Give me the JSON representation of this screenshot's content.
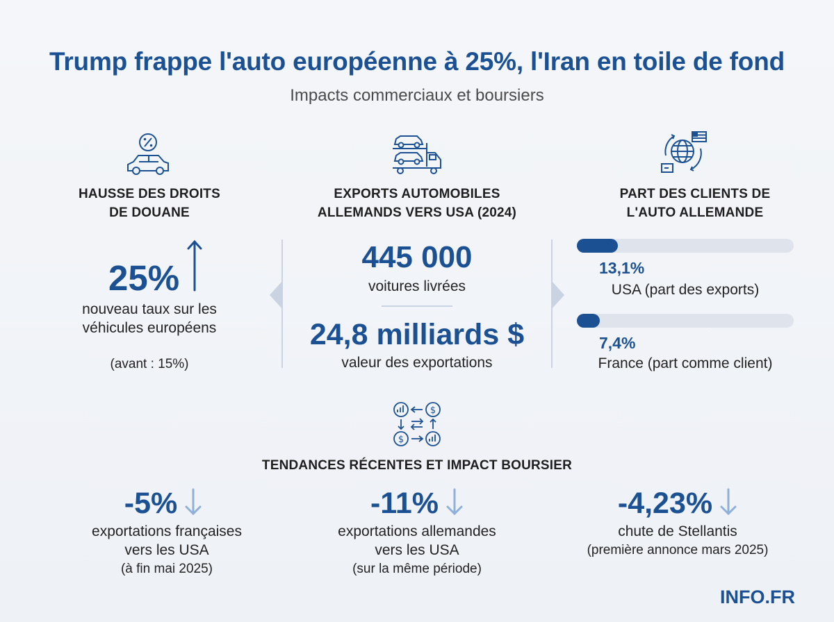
{
  "title": "Trump frappe l'auto européenne à 25%, l'Iran en toile de fond",
  "subtitle": "Impacts commerciaux et boursiers",
  "colors": {
    "accent": "#1b5192",
    "muted_arrow": "#8fb0d8",
    "track": "#dfe4ec"
  },
  "tariffs": {
    "icon": "car-percent-icon",
    "heading_line1": "HAUSSE DES DROITS",
    "heading_line2": "DE DOUANE",
    "value": "25%",
    "desc_line1": "nouveau taux sur les",
    "desc_line2": "véhicules européens",
    "previous": "(avant : 15%)"
  },
  "exports": {
    "icon": "car-transporter-icon",
    "heading_line1": "EXPORTS AUTOMOBILES",
    "heading_line2": "ALLEMANDS VERS USA (2024)",
    "cars_value": "445 000",
    "cars_label": "voitures livrées",
    "money_value": "24,8 milliards $",
    "money_label": "valeur des exportations"
  },
  "clients": {
    "icon": "globe-trade-icon",
    "heading_line1": "PART DES CLIENTS DE",
    "heading_line2": "L'AUTO ALLEMANDE",
    "bars": [
      {
        "value": "13,1%",
        "fraction": 0.131,
        "label": "USA (part des exports)"
      },
      {
        "value": "7,4%",
        "fraction": 0.074,
        "label": "France (part comme client)"
      }
    ]
  },
  "trends": {
    "icon": "exchange-trends-icon",
    "heading": "TENDANCES RÉCENTES ET IMPACT BOURSIER",
    "items": [
      {
        "value": "-5%",
        "line1": "exportations françaises",
        "line2": "vers les USA",
        "line3": "(à fin mai 2025)"
      },
      {
        "value": "-11%",
        "line1": "exportations allemandes",
        "line2": "vers les USA",
        "line3": "(sur la même période)"
      },
      {
        "value": "-4,23%",
        "line1": "chute de Stellantis",
        "line2": "(première annonce mars 2025)",
        "line3": ""
      }
    ]
  },
  "footer": {
    "logo": "INFO.FR"
  }
}
